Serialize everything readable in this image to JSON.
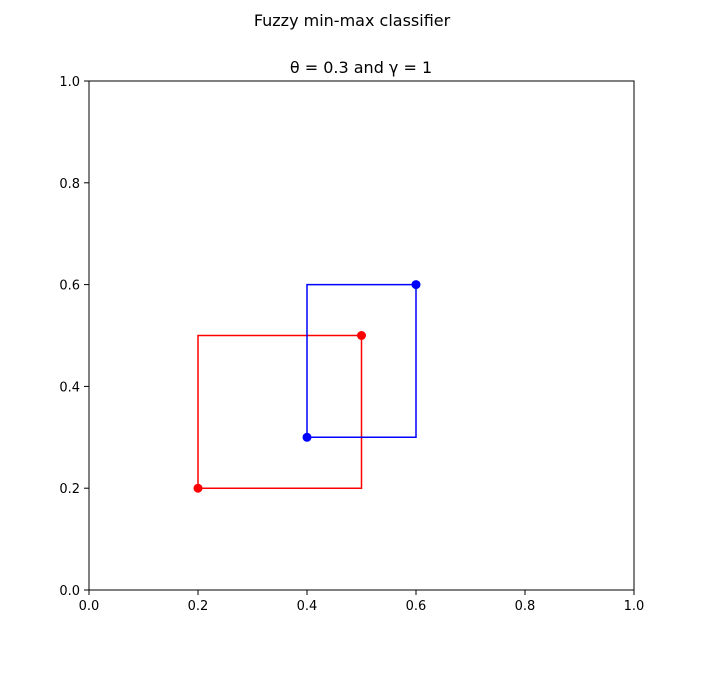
{
  "figure": {
    "suptitle": "Fuzzy min-max classifier"
  },
  "chart_data": {
    "type": "line",
    "title": "θ = 0.3 and γ = 1",
    "xlabel": "",
    "ylabel": "",
    "xlim": [
      0.0,
      1.0
    ],
    "ylim": [
      0.0,
      1.0
    ],
    "xticks": [
      "0.0",
      "0.2",
      "0.4",
      "0.6",
      "0.8",
      "1.0"
    ],
    "yticks": [
      "0.0",
      "0.2",
      "0.4",
      "0.6",
      "0.8",
      "1.0"
    ],
    "grid": false,
    "legend": "none",
    "series": [
      {
        "color": "#ff0000",
        "box": {
          "min": [
            0.2,
            0.2
          ],
          "max": [
            0.5,
            0.5
          ]
        },
        "points": [
          {
            "x": 0.2,
            "y": 0.2
          },
          {
            "x": 0.5,
            "y": 0.5
          }
        ]
      },
      {
        "color": "#0000ff",
        "box": {
          "min": [
            0.4,
            0.3
          ],
          "max": [
            0.6,
            0.6
          ]
        },
        "points": [
          {
            "x": 0.4,
            "y": 0.3
          },
          {
            "x": 0.6,
            "y": 0.6
          }
        ]
      }
    ]
  }
}
